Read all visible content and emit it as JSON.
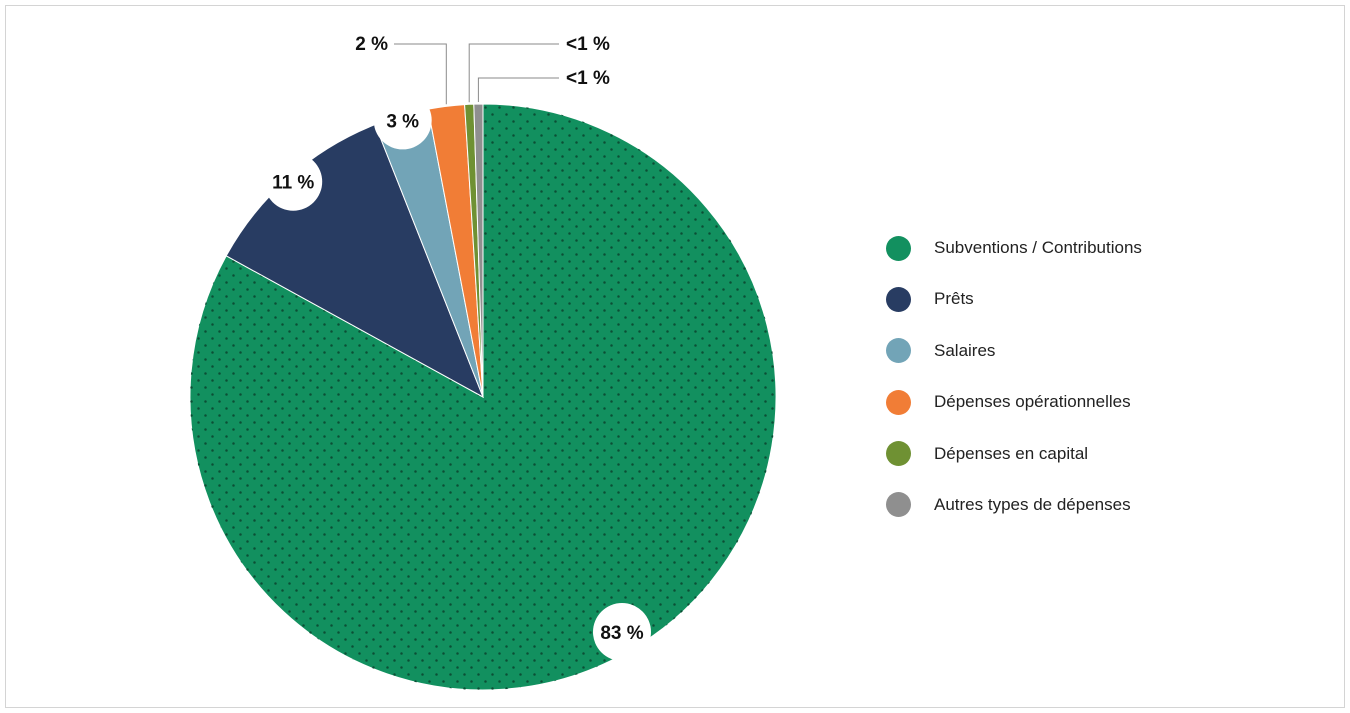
{
  "chart_data": {
    "type": "pie",
    "title": "",
    "categories": [
      "Subventions / Contributions",
      "Prêts",
      "Salaires",
      "Dépenses opérationnelles",
      "Dépenses en capital",
      "Autres types de dépenses"
    ],
    "values": [
      83,
      11,
      3,
      2,
      0.5,
      0.5
    ],
    "data_labels": [
      "83 %",
      "11 %",
      "3 %",
      "2 %",
      "<1 %",
      "<1 %"
    ],
    "colors": [
      "#12905f",
      "#283c62",
      "#72a4b7",
      "#f17d36",
      "#6f9133",
      "#8f8f8f"
    ],
    "pattern": "dotted fill on first slice",
    "start_angle_deg": 0,
    "direction": "clockwise from 12 o'clock",
    "legend_position": "right"
  }
}
